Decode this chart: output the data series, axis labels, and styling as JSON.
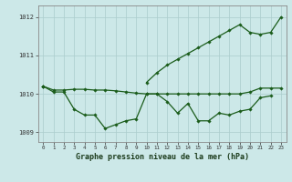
{
  "xlabel": "Graphe pression niveau de la mer (hPa)",
  "hours": [
    0,
    1,
    2,
    3,
    4,
    5,
    6,
    7,
    8,
    9,
    10,
    11,
    12,
    13,
    14,
    15,
    16,
    17,
    18,
    19,
    20,
    21,
    22,
    23
  ],
  "line1": [
    1010.2,
    1010.1,
    1010.1,
    1010.12,
    1010.12,
    1010.1,
    1010.1,
    1010.08,
    1010.05,
    1010.02,
    1010.0,
    1010.0,
    1010.0,
    1010.0,
    1010.0,
    1010.0,
    1010.0,
    1010.0,
    1010.0,
    1010.0,
    1010.05,
    1010.15,
    1010.15,
    1010.15
  ],
  "line2": [
    1010.2,
    1010.05,
    1010.05,
    1009.6,
    1009.45,
    1009.45,
    1009.1,
    1009.2,
    1009.3,
    1009.35,
    1010.0,
    1010.0,
    1009.8,
    1009.5,
    1009.75,
    1009.3,
    1009.3,
    1009.5,
    1009.45,
    1009.55,
    1009.6,
    1009.9,
    1009.95,
    null
  ],
  "line3": [
    1010.2,
    null,
    null,
    null,
    null,
    null,
    null,
    null,
    null,
    null,
    1010.3,
    1010.55,
    1010.75,
    1010.9,
    1011.05,
    1011.2,
    1011.35,
    1011.5,
    1011.65,
    1011.8,
    1011.6,
    1011.55,
    1011.6,
    1012.0
  ],
  "ylim": [
    1008.75,
    1012.3
  ],
  "yticks": [
    1009,
    1010,
    1011,
    1012
  ],
  "xlim": [
    -0.5,
    23.5
  ],
  "line_color": "#1a5c1a",
  "bg_color": "#cce8e8",
  "grid_color": "#aacccc",
  "marker": "D",
  "marker_size": 1.8,
  "linewidth": 0.9
}
